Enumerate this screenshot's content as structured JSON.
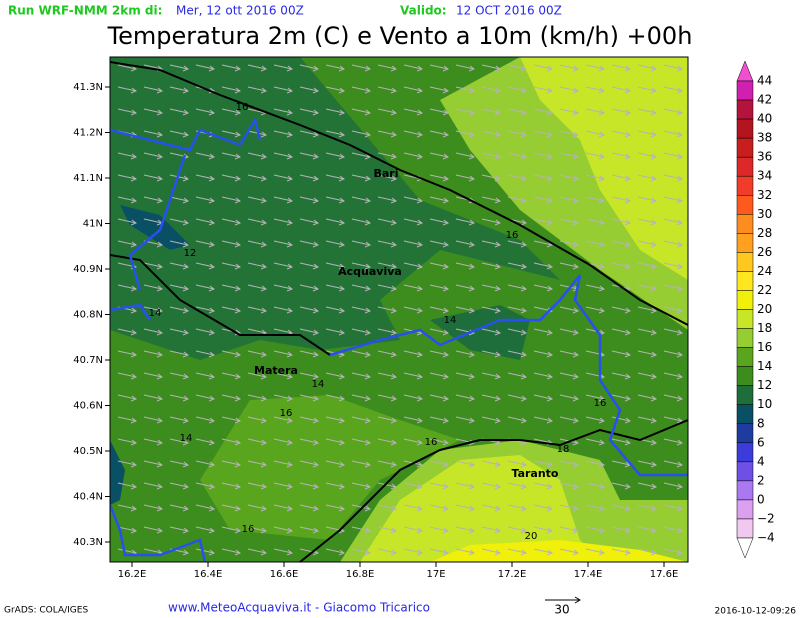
{
  "header": {
    "run": "Run WRF-NMM 2km di:",
    "run_date": "Mer, 12 ott 2016 00Z",
    "valid_label": "Valido:",
    "valid_date": "12 OCT 2016 00Z",
    "title": "Temperatura 2m (C) e Vento a 10m (km/h) +00h"
  },
  "map": {
    "x_labels": [
      "16.2E",
      "16.4E",
      "16.6E",
      "16.8E",
      "17E",
      "17.2E",
      "17.4E",
      "17.6E"
    ],
    "y_labels": [
      "41.3N",
      "41.2N",
      "41.1N",
      "41N",
      "40.9N",
      "40.8N",
      "40.7N",
      "40.6N",
      "40.5N",
      "40.4N",
      "40.3N"
    ],
    "places": [
      "Bari",
      "Acquaviva",
      "Matera",
      "Taranto"
    ],
    "contour_labels": [
      "16",
      "16",
      "12",
      "14",
      "14",
      "14",
      "16",
      "14",
      "16",
      "16",
      "18",
      "16",
      "20"
    ]
  },
  "colorbar": {
    "labels": [
      "44",
      "42",
      "40",
      "38",
      "36",
      "34",
      "32",
      "30",
      "28",
      "26",
      "24",
      "22",
      "20",
      "18",
      "16",
      "14",
      "12",
      "10",
      "8",
      "6",
      "4",
      "2",
      "0",
      "−2",
      "−4"
    ],
    "colors": [
      "#f050d0",
      "#d020b0",
      "#b4143c",
      "#b4141e",
      "#c81e1e",
      "#dc2828",
      "#f03c28",
      "#ff5a1e",
      "#ff8c1e",
      "#ffa01e",
      "#ffc81e",
      "#ffe61e",
      "#f0f00a",
      "#c8e628",
      "#96cd32",
      "#5aa51e",
      "#3c8c1e",
      "#1e6e3c",
      "#0a5064",
      "#1e3ca0",
      "#3c3cdc",
      "#6e50e6",
      "#aa78f0",
      "#dca0f0",
      "#f0c8f0",
      "#ffffff"
    ]
  },
  "footer": {
    "grads": "GrADS: COLA/IGES",
    "credit": "www.MeteoAcquaviva.it - Giacomo Tricarico",
    "vector_ref": "30",
    "timestamp": "2016-10-12-09:26"
  }
}
